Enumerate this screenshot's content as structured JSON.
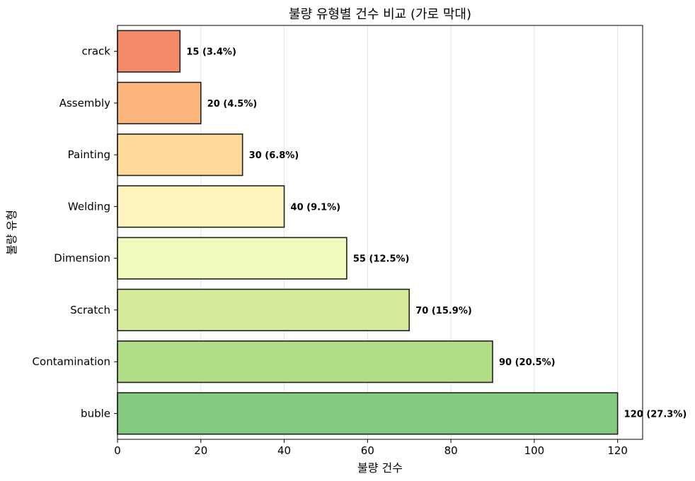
{
  "chart_data": {
    "type": "bar",
    "orientation": "horizontal",
    "title": "불량 유형별 건수 비교 (가로 막대)",
    "xlabel": "불량 건수",
    "ylabel": "불량 유형",
    "categories": [
      "crack",
      "Assembly",
      "Painting",
      "Welding",
      "Dimension",
      "Scratch",
      "Contamination",
      "buble"
    ],
    "values": [
      15,
      20,
      30,
      40,
      55,
      70,
      90,
      120
    ],
    "data_labels": [
      "15 (3.4%)",
      "20 (4.5%)",
      "30 (6.8%)",
      "40 (9.1%)",
      "55 (12.5%)",
      "70 (15.9%)",
      "90 (20.5%)",
      "120 (27.3%)"
    ],
    "colors": [
      "#f68b6b",
      "#fdb67c",
      "#fed99a",
      "#fff4bd",
      "#f1f9bb",
      "#d5ed9b",
      "#b0dd85",
      "#83ca80"
    ],
    "xlim": [
      0,
      126
    ],
    "xticks": [
      0,
      20,
      40,
      60,
      80,
      100,
      120
    ],
    "grid": "vertical",
    "legend": "none"
  }
}
